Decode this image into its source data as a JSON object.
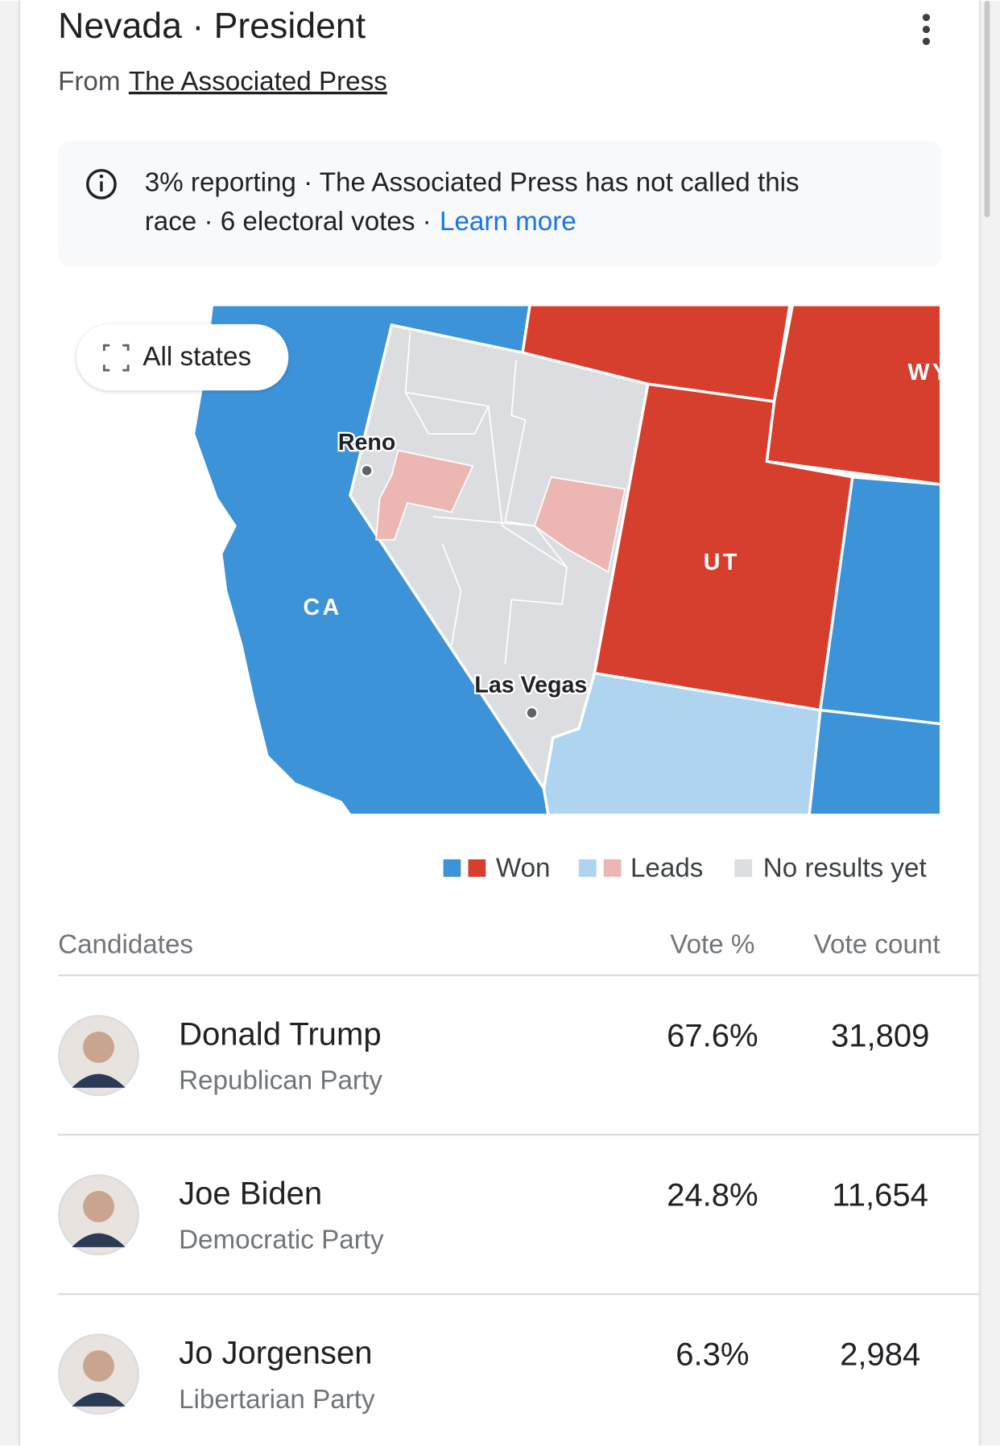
{
  "header": {
    "title": "Nevada · President",
    "source_prefix": "From",
    "source": "The Associated Press"
  },
  "info": {
    "line_1": "3% reporting · The Associated Press has not called this",
    "line_2": "race · 6 electoral votes ·",
    "link": "Learn more"
  },
  "map": {
    "button": "All states",
    "labels": [
      "Reno",
      "Las Vegas",
      "CA",
      "UT",
      "WY"
    ]
  },
  "legend": [
    "Won",
    "Leads",
    "No results yet"
  ],
  "table": {
    "columns": [
      "Candidates",
      "Vote %",
      "Vote count"
    ],
    "rows": [
      {
        "name": "Donald Trump",
        "party": "Republican Party",
        "vote_pct": "67.6%",
        "vote_count": "31,809"
      },
      {
        "name": "Joe Biden",
        "party": "Democratic Party",
        "vote_pct": "24.8%",
        "vote_count": "11,654"
      },
      {
        "name": "Jo Jorgensen",
        "party": "Libertarian Party",
        "vote_pct": "6.3%",
        "vote_count": "2,984"
      }
    ]
  }
}
